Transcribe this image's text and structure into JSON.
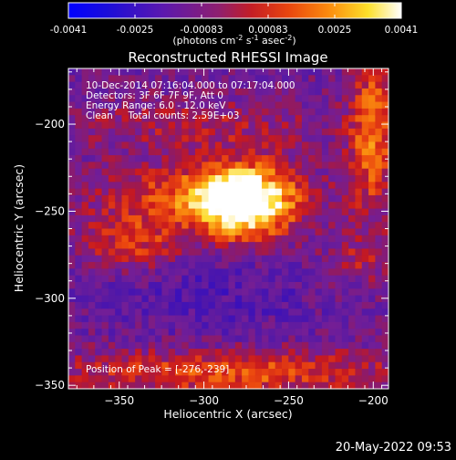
{
  "colorbar": {
    "tick_labels": [
      "-0.0041",
      "-0.0025",
      "-0.00083",
      "0.00083",
      "0.0025",
      "0.0041"
    ],
    "units_prefix": "(photons cm",
    "units_exp1": "-2",
    "units_mid": " s",
    "units_exp2": "-1",
    "units_mid2": " asec",
    "units_exp3": "-2",
    "units_suffix": ")"
  },
  "chart_data": {
    "type": "heatmap",
    "title": "Reconstructed RHESSI Image",
    "xlabel": "Heliocentric X (arcsec)",
    "ylabel": "Heliocentric Y (arcsec)",
    "xlim": [
      -380,
      -191
    ],
    "ylim": [
      -352,
      -168
    ],
    "xticks": [
      -350,
      -300,
      -250,
      -200
    ],
    "yticks": [
      -350,
      -300,
      -250,
      -200
    ],
    "color_range": [
      -0.0041,
      0.0041
    ],
    "peak": [
      -276,
      -239
    ],
    "info_lines": [
      "10-Dec-2014 07:16:04.000 to 07:17:04.000",
      "Detectors: 3F 6F 7F 9F, Att 0",
      "Energy Range: 6.0 - 12.0 keV",
      "Clean     Total counts: 2.59E+03"
    ],
    "peak_label": "Position of Peak = [-276,-239]"
  },
  "timestamp": "20-May-2022 09:53"
}
